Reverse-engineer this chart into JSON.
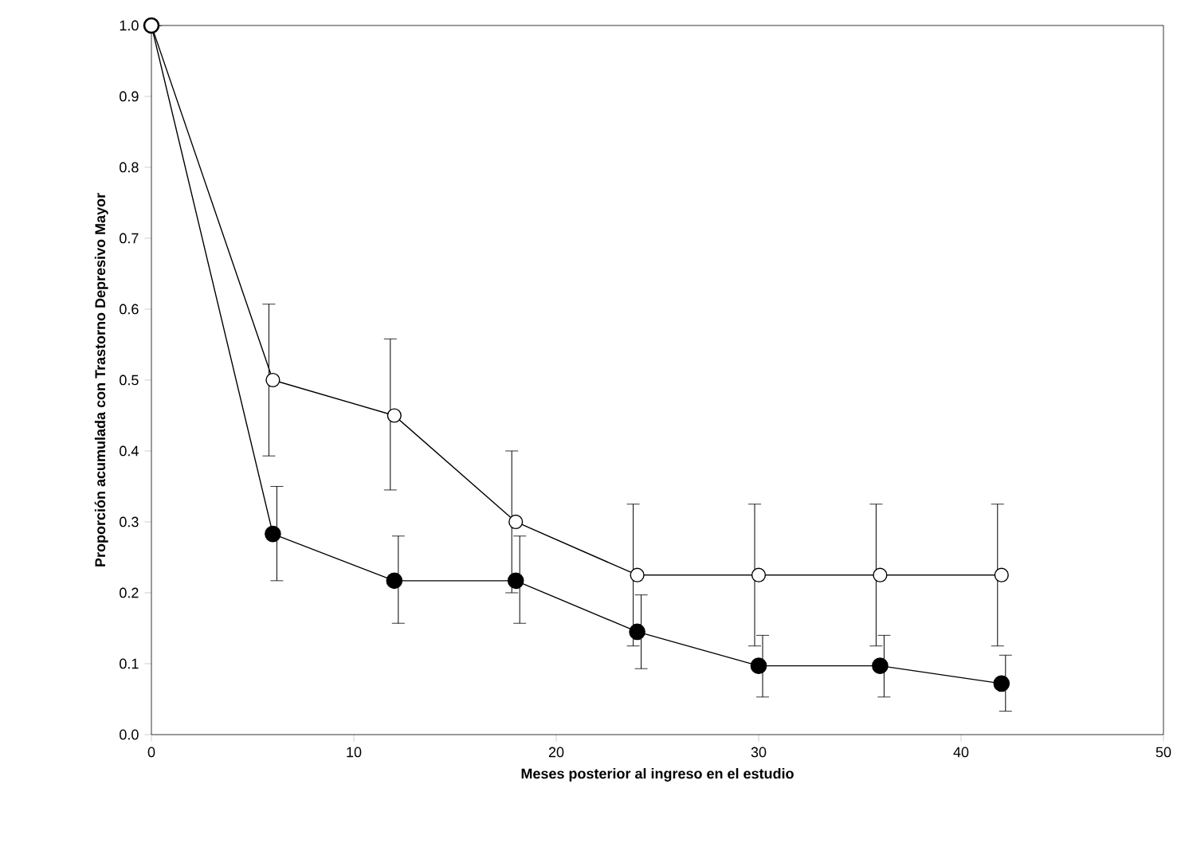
{
  "chart_data": {
    "type": "line",
    "xlabel": "Meses posterior al ingreso en el estudio",
    "ylabel": "Proporción acumulada con Trastorno Depresivo Mayor",
    "series": [
      {
        "color": "#ffffff",
        "x": [
          0,
          6,
          12,
          18,
          24,
          30,
          36,
          42
        ],
        "values": [
          1.0,
          0.5,
          0.45,
          0.3,
          0.225,
          0.225,
          0.225,
          0.225
        ],
        "errors": [
          null,
          [
            0.393,
            0.607
          ],
          [
            0.345,
            0.558
          ],
          [
            0.2,
            0.4
          ],
          [
            0.125,
            0.325
          ],
          [
            0.125,
            0.325
          ],
          [
            0.125,
            0.325
          ],
          [
            0.125,
            0.325
          ]
        ]
      },
      {
        "color": "#000000",
        "x": [
          0,
          6,
          12,
          18,
          24,
          30,
          36,
          42
        ],
        "values": [
          1.0,
          0.283,
          0.217,
          0.217,
          0.145,
          0.097,
          0.097,
          0.072
        ],
        "errors": [
          null,
          [
            0.217,
            0.35
          ],
          [
            0.157,
            0.28
          ],
          [
            0.157,
            0.28
          ],
          [
            0.093,
            0.197
          ],
          [
            0.053,
            0.14
          ],
          [
            0.053,
            0.14
          ],
          [
            0.033,
            0.112
          ]
        ]
      }
    ],
    "xlim": [
      0,
      50
    ],
    "xticks": [
      0,
      10,
      20,
      30,
      40,
      50
    ],
    "ylim": [
      0,
      1
    ],
    "yticks": [
      {
        "value": 0,
        "label": "0.0"
      },
      {
        "value": 0.1,
        "label": "0.1"
      },
      {
        "value": 0.2,
        "label": "0.2"
      },
      {
        "value": 0.3,
        "label": "0.3"
      },
      {
        "value": 0.4,
        "label": "0.4"
      },
      {
        "value": 0.5,
        "label": "0.5"
      },
      {
        "value": 0.6,
        "label": "0.6"
      },
      {
        "value": 0.7,
        "label": "0.7"
      },
      {
        "value": 0.8,
        "label": "0.8"
      },
      {
        "value": 0.9,
        "label": "0.9"
      },
      {
        "value": 1,
        "label": "1.0"
      }
    ],
    "grid": false,
    "marker": "circle",
    "line_style": "solid"
  }
}
